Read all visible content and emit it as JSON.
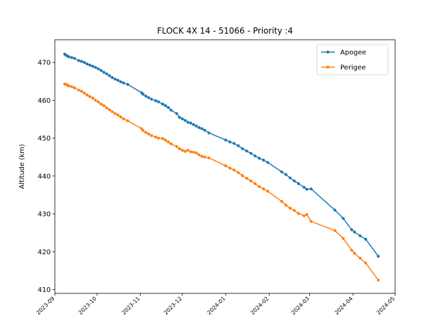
{
  "chart_data": {
    "type": "line",
    "title": "FLOCK 4X 14 - 51066 - Priority :4",
    "xlabel": "",
    "ylabel": "Altitude (km)",
    "xlim": [
      "2023-09-01",
      "2024-05-01"
    ],
    "ylim": [
      409,
      476
    ],
    "x_ticks": [
      "2023-09",
      "2023-10",
      "2023-11",
      "2023-12",
      "2024-01",
      "2024-02",
      "2024-03",
      "2024-04",
      "2024-05"
    ],
    "y_ticks": [
      410,
      420,
      430,
      440,
      450,
      460,
      470
    ],
    "legend_position": "top-right",
    "grid": false,
    "series": [
      {
        "name": "Apogee",
        "color": "#1f77b4",
        "marker": "circle",
        "points": [
          [
            "2023-09-08",
            472.2
          ],
          [
            "2023-09-09",
            471.9
          ],
          [
            "2023-09-10",
            471.7
          ],
          [
            "2023-09-11",
            471.5
          ],
          [
            "2023-09-13",
            471.3
          ],
          [
            "2023-09-15",
            471.1
          ],
          [
            "2023-09-18",
            470.5
          ],
          [
            "2023-09-20",
            470.3
          ],
          [
            "2023-09-22",
            470.0
          ],
          [
            "2023-09-24",
            469.6
          ],
          [
            "2023-09-26",
            469.3
          ],
          [
            "2023-09-28",
            469.0
          ],
          [
            "2023-09-30",
            468.7
          ],
          [
            "2023-10-02",
            468.3
          ],
          [
            "2023-10-04",
            467.9
          ],
          [
            "2023-10-06",
            467.4
          ],
          [
            "2023-10-08",
            467.0
          ],
          [
            "2023-10-10",
            466.5
          ],
          [
            "2023-10-12",
            466.0
          ],
          [
            "2023-10-14",
            465.6
          ],
          [
            "2023-10-16",
            465.3
          ],
          [
            "2023-10-18",
            464.9
          ],
          [
            "2023-10-20",
            464.6
          ],
          [
            "2023-10-23",
            464.2
          ],
          [
            "2023-11-02",
            462.0
          ],
          [
            "2023-11-03",
            461.6
          ],
          [
            "2023-11-05",
            461.1
          ],
          [
            "2023-11-07",
            460.7
          ],
          [
            "2023-11-09",
            460.3
          ],
          [
            "2023-11-12",
            459.9
          ],
          [
            "2023-11-14",
            459.6
          ],
          [
            "2023-11-17",
            459.0
          ],
          [
            "2023-11-19",
            458.6
          ],
          [
            "2023-11-21",
            458.1
          ],
          [
            "2023-11-23",
            457.4
          ],
          [
            "2023-11-27",
            456.5
          ],
          [
            "2023-11-29",
            455.5
          ],
          [
            "2023-12-01",
            455.1
          ],
          [
            "2023-12-03",
            454.7
          ],
          [
            "2023-12-05",
            454.2
          ],
          [
            "2023-12-07",
            454.0
          ],
          [
            "2023-12-09",
            453.6
          ],
          [
            "2023-12-11",
            453.2
          ],
          [
            "2023-12-13",
            452.8
          ],
          [
            "2023-12-15",
            452.5
          ],
          [
            "2023-12-17",
            452.1
          ],
          [
            "2023-12-20",
            451.4
          ],
          [
            "2024-01-01",
            449.5
          ],
          [
            "2024-01-04",
            449.0
          ],
          [
            "2024-01-07",
            448.6
          ],
          [
            "2024-01-10",
            448.0
          ],
          [
            "2024-01-13",
            447.2
          ],
          [
            "2024-01-16",
            446.6
          ],
          [
            "2024-01-19",
            446.0
          ],
          [
            "2024-01-22",
            445.3
          ],
          [
            "2024-01-25",
            444.7
          ],
          [
            "2024-01-28",
            444.2
          ],
          [
            "2024-01-31",
            443.6
          ],
          [
            "2024-02-10",
            441.1
          ],
          [
            "2024-02-13",
            440.4
          ],
          [
            "2024-02-16",
            439.5
          ],
          [
            "2024-02-19",
            438.7
          ],
          [
            "2024-02-22",
            438.0
          ],
          [
            "2024-02-26",
            437.0
          ],
          [
            "2024-02-28",
            436.5
          ],
          [
            "2024-03-02",
            436.6
          ],
          [
            "2024-03-19",
            431.0
          ],
          [
            "2024-03-25",
            428.8
          ],
          [
            "2024-03-31",
            425.8
          ],
          [
            "2024-04-02",
            425.2
          ],
          [
            "2024-04-06",
            424.2
          ],
          [
            "2024-04-10",
            423.3
          ],
          [
            "2024-04-19",
            418.8
          ]
        ]
      },
      {
        "name": "Perigee",
        "color": "#ff7f0e",
        "marker": "circle",
        "points": [
          [
            "2023-09-08",
            464.3
          ],
          [
            "2023-09-09",
            464.2
          ],
          [
            "2023-09-10",
            464.0
          ],
          [
            "2023-09-11",
            463.8
          ],
          [
            "2023-09-13",
            463.6
          ],
          [
            "2023-09-15",
            463.3
          ],
          [
            "2023-09-18",
            462.7
          ],
          [
            "2023-09-20",
            462.4
          ],
          [
            "2023-09-22",
            461.9
          ],
          [
            "2023-09-24",
            461.4
          ],
          [
            "2023-09-26",
            461.0
          ],
          [
            "2023-09-28",
            460.6
          ],
          [
            "2023-09-30",
            460.0
          ],
          [
            "2023-10-02",
            459.6
          ],
          [
            "2023-10-04",
            459.0
          ],
          [
            "2023-10-06",
            458.6
          ],
          [
            "2023-10-08",
            458.0
          ],
          [
            "2023-10-10",
            457.5
          ],
          [
            "2023-10-12",
            457.0
          ],
          [
            "2023-10-14",
            456.5
          ],
          [
            "2023-10-16",
            456.1
          ],
          [
            "2023-10-18",
            455.6
          ],
          [
            "2023-10-20",
            455.1
          ],
          [
            "2023-10-23",
            454.6
          ],
          [
            "2023-11-02",
            452.5
          ],
          [
            "2023-11-03",
            452.0
          ],
          [
            "2023-11-05",
            451.5
          ],
          [
            "2023-11-07",
            451.1
          ],
          [
            "2023-11-09",
            450.7
          ],
          [
            "2023-11-12",
            450.3
          ],
          [
            "2023-11-14",
            450.0
          ],
          [
            "2023-11-17",
            449.9
          ],
          [
            "2023-11-19",
            449.5
          ],
          [
            "2023-11-21",
            449.0
          ],
          [
            "2023-11-23",
            448.5
          ],
          [
            "2023-11-27",
            447.8
          ],
          [
            "2023-11-29",
            447.2
          ],
          [
            "2023-12-01",
            446.8
          ],
          [
            "2023-12-03",
            446.5
          ],
          [
            "2023-12-05",
            446.8
          ],
          [
            "2023-12-07",
            446.4
          ],
          [
            "2023-12-09",
            446.3
          ],
          [
            "2023-12-11",
            446.1
          ],
          [
            "2023-12-13",
            445.6
          ],
          [
            "2023-12-15",
            445.2
          ],
          [
            "2023-12-17",
            445.0
          ],
          [
            "2023-12-20",
            444.8
          ],
          [
            "2024-01-01",
            442.7
          ],
          [
            "2024-01-04",
            442.1
          ],
          [
            "2024-01-07",
            441.6
          ],
          [
            "2024-01-10",
            440.9
          ],
          [
            "2024-01-13",
            440.1
          ],
          [
            "2024-01-16",
            439.4
          ],
          [
            "2024-01-19",
            438.7
          ],
          [
            "2024-01-22",
            438.0
          ],
          [
            "2024-01-25",
            437.2
          ],
          [
            "2024-01-28",
            436.6
          ],
          [
            "2024-01-31",
            436.0
          ],
          [
            "2024-02-10",
            433.3
          ],
          [
            "2024-02-13",
            432.3
          ],
          [
            "2024-02-16",
            431.5
          ],
          [
            "2024-02-19",
            430.9
          ],
          [
            "2024-02-22",
            430.1
          ],
          [
            "2024-02-26",
            429.5
          ],
          [
            "2024-02-28",
            429.8
          ],
          [
            "2024-03-02",
            428.0
          ],
          [
            "2024-03-19",
            425.6
          ],
          [
            "2024-03-25",
            423.5
          ],
          [
            "2024-03-31",
            420.4
          ],
          [
            "2024-04-02",
            419.6
          ],
          [
            "2024-04-06",
            418.3
          ],
          [
            "2024-04-10",
            417.0
          ],
          [
            "2024-04-19",
            412.5
          ]
        ]
      }
    ]
  }
}
